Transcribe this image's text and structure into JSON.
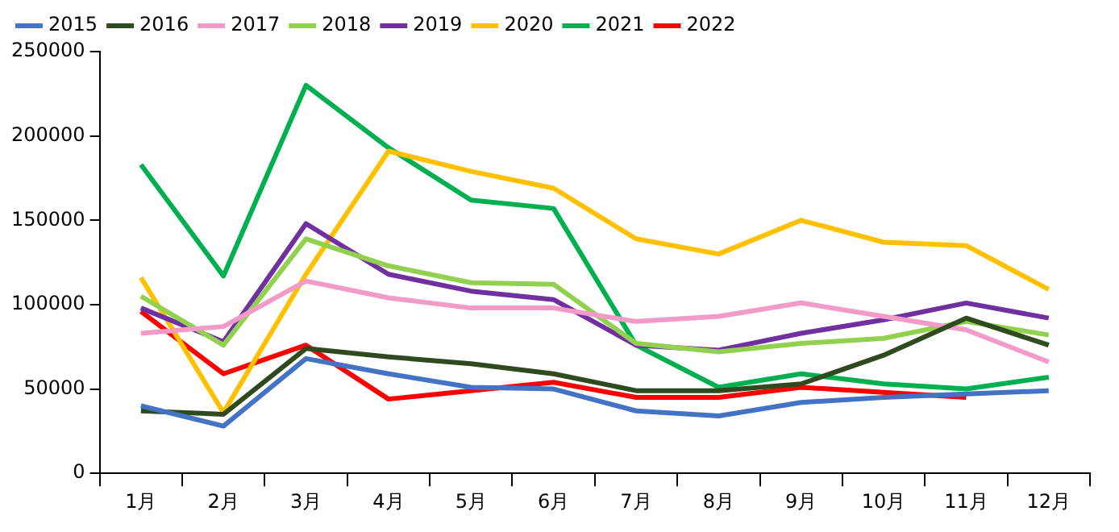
{
  "chart_data": {
    "type": "line",
    "categories": [
      "1月",
      "2月",
      "3月",
      "4月",
      "5月",
      "6月",
      "7月",
      "8月",
      "9月",
      "10月",
      "11月",
      "12月"
    ],
    "series": [
      {
        "name": "2015",
        "color": "#4472c4",
        "values": [
          40000,
          28000,
          68000,
          59000,
          51000,
          50000,
          37000,
          34000,
          42000,
          45000,
          47000,
          49000
        ]
      },
      {
        "name": "2016",
        "color": "#2e4a1e",
        "values": [
          37000,
          35000,
          74000,
          69000,
          65000,
          59000,
          49000,
          49000,
          53000,
          70000,
          92000,
          76000
        ]
      },
      {
        "name": "2017",
        "color": "#f29ac8",
        "values": [
          83000,
          87000,
          114000,
          104000,
          98000,
          98000,
          90000,
          93000,
          101000,
          93000,
          85000,
          66000
        ]
      },
      {
        "name": "2018",
        "color": "#92d050",
        "values": [
          105000,
          76000,
          139000,
          123000,
          113000,
          112000,
          77000,
          72000,
          77000,
          80000,
          90000,
          82000
        ]
      },
      {
        "name": "2019",
        "color": "#7030a0",
        "values": [
          98000,
          78000,
          148000,
          118000,
          108000,
          103000,
          76000,
          73000,
          83000,
          91000,
          101000,
          92000
        ]
      },
      {
        "name": "2020",
        "color": "#ffc000",
        "values": [
          116000,
          36000,
          118000,
          191000,
          179000,
          169000,
          139000,
          130000,
          150000,
          137000,
          135000,
          109000
        ]
      },
      {
        "name": "2021",
        "color": "#00b050",
        "values": [
          183000,
          117000,
          230000,
          193000,
          162000,
          157000,
          76000,
          51000,
          59000,
          53000,
          50000,
          57000
        ]
      },
      {
        "name": "2022",
        "color": "#ff0000",
        "values": [
          96000,
          59000,
          76000,
          44000,
          49000,
          54000,
          45000,
          45000,
          51000,
          48000,
          45000,
          null
        ]
      }
    ],
    "ylim": [
      0,
      250000
    ],
    "yticks": [
      0,
      50000,
      100000,
      150000,
      200000,
      250000
    ],
    "grid": false,
    "legend": "top",
    "marker": "none",
    "line_style": "solid"
  }
}
